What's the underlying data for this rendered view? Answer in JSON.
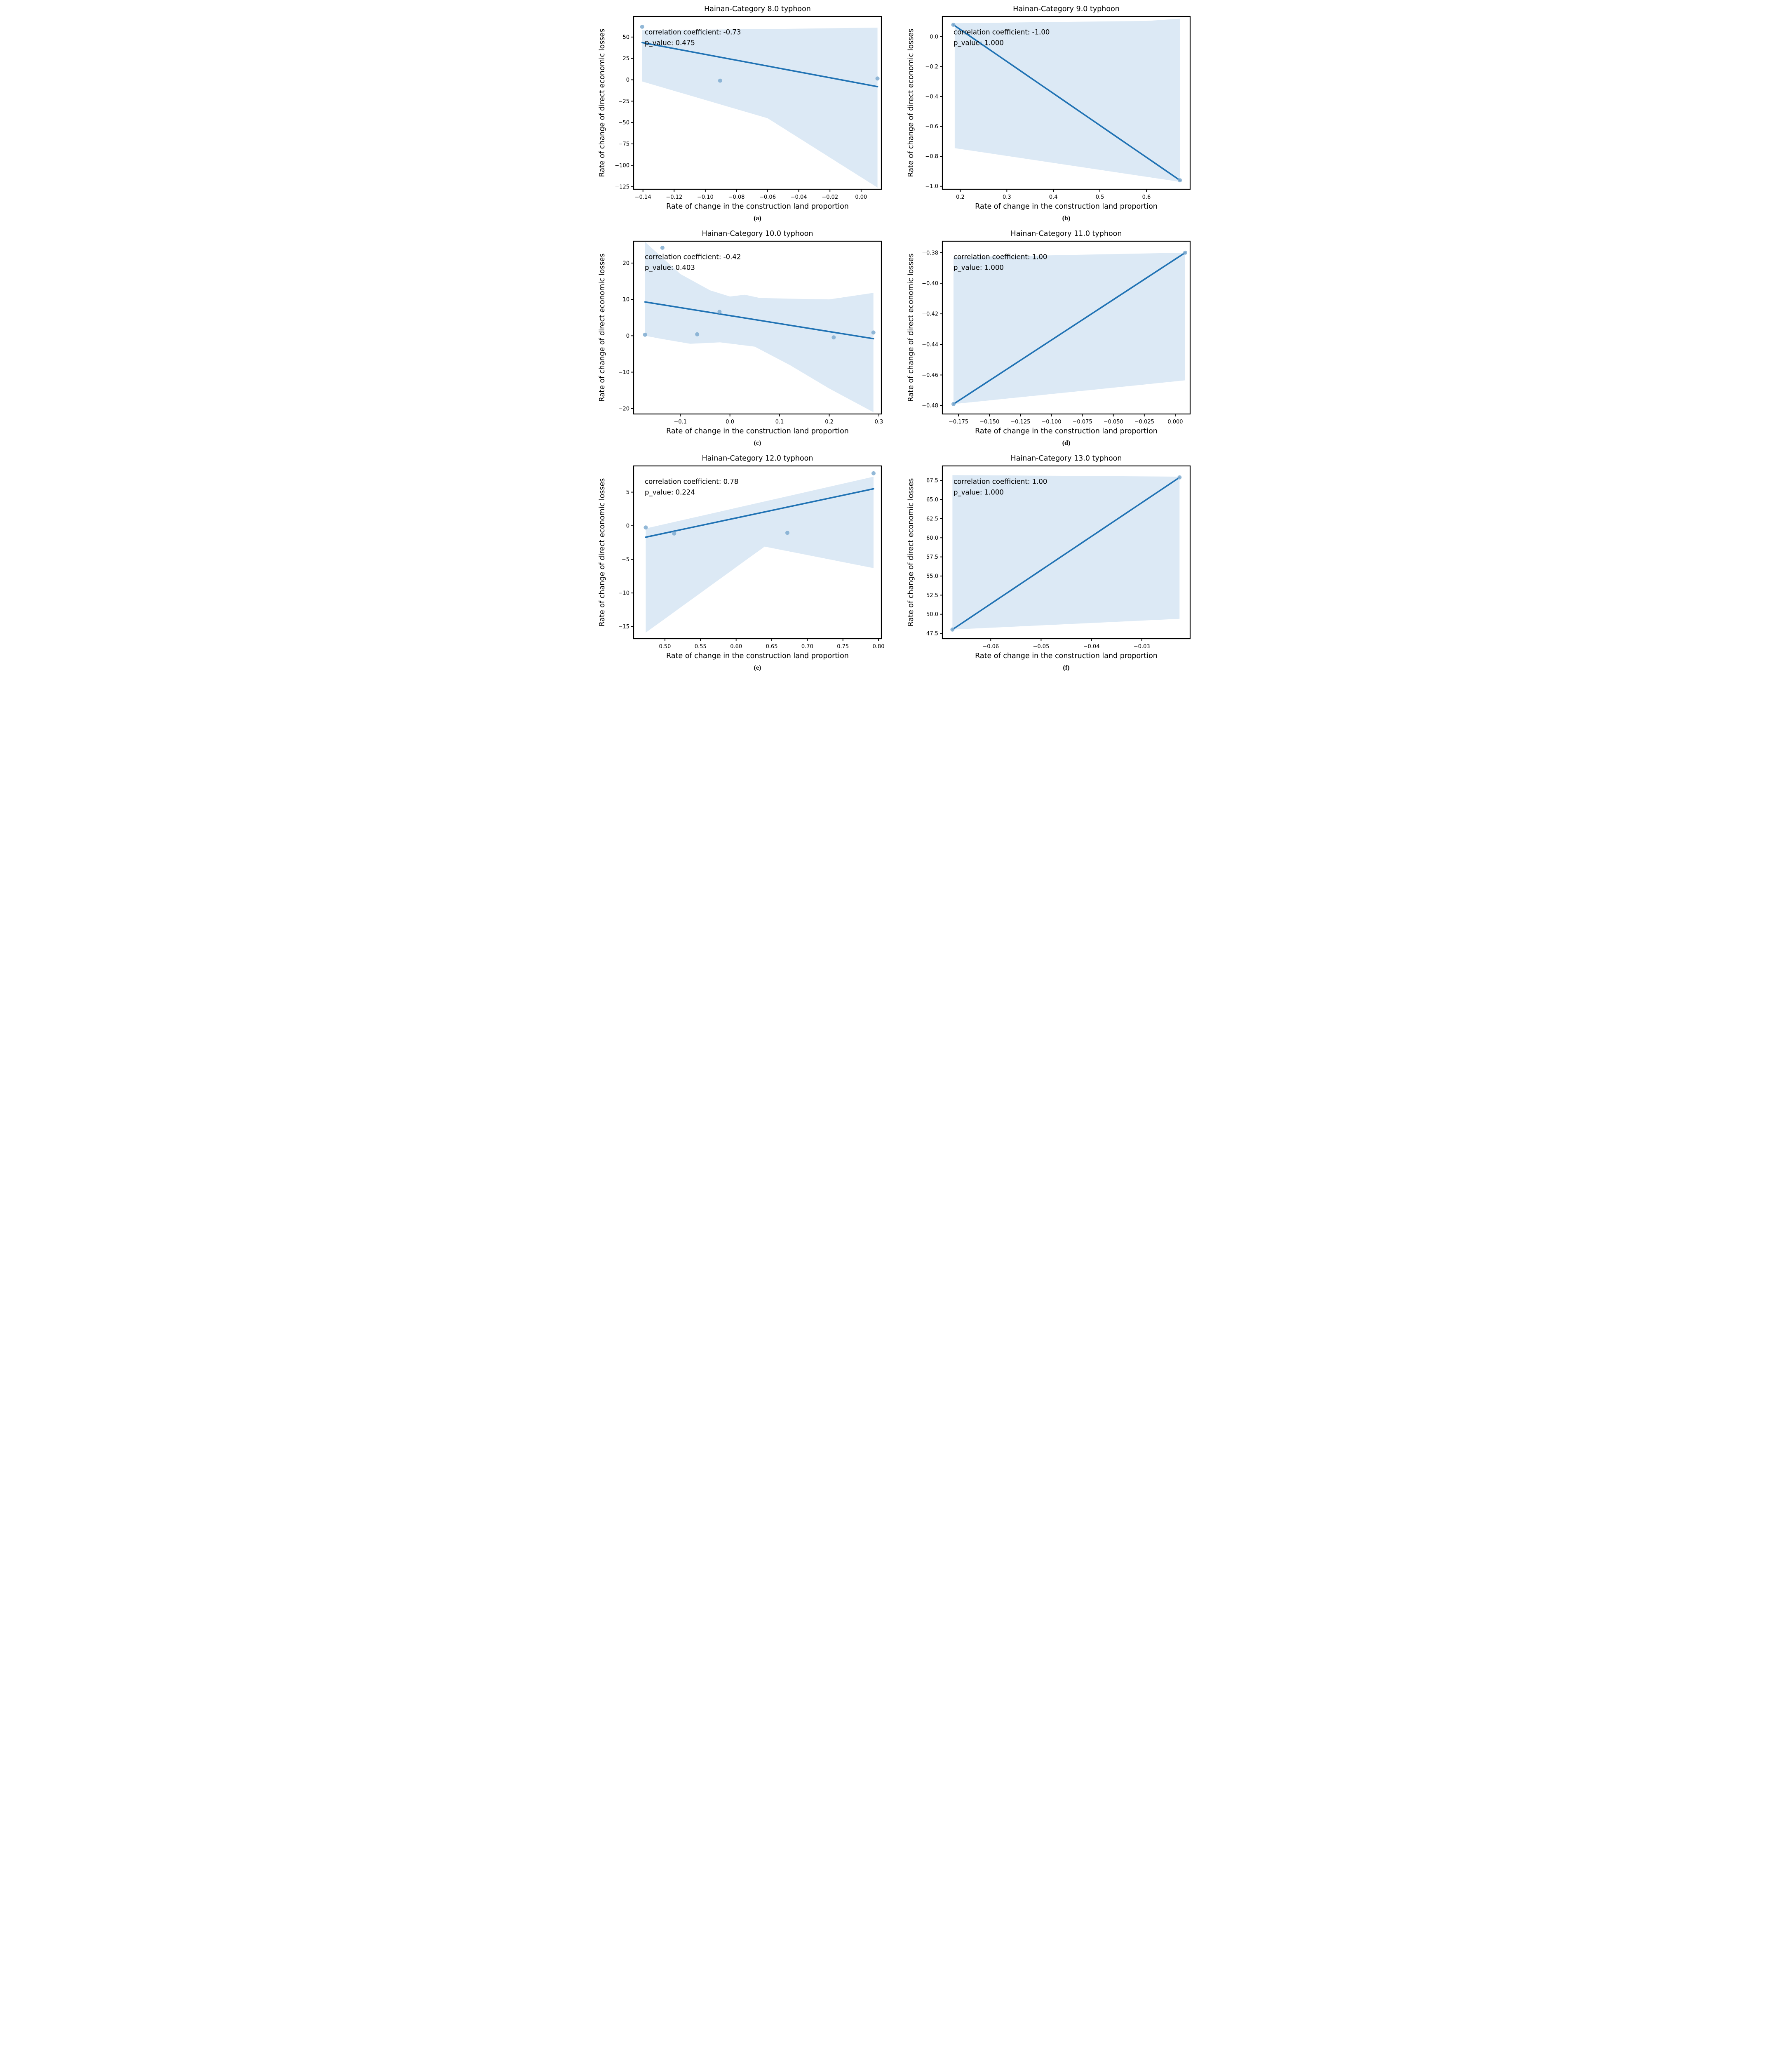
{
  "figure": {
    "x_axis_label": "Rate of change in the construction land proportion",
    "y_axis_label": "Rate of change of direct economic losses",
    "colors": {
      "regression_line": "#2173b4",
      "scatter_point": "#7fabd0",
      "confidence_band": "#dce9f5",
      "spine": "#000000",
      "text": "#000000"
    }
  },
  "chart_data": [
    {
      "type": "scatter",
      "caption": "(a)",
      "title": "Hainan-Category 8.0 typhoon",
      "annotation_line1": "correlation coefficient: -0.73",
      "annotation_line2": "p_value: 0.475",
      "xlabel": "Rate of change in the construction land proportion",
      "ylabel": "Rate of change of direct economic losses",
      "xlim": [
        -0.146,
        0.013
      ],
      "ylim": [
        -128,
        74
      ],
      "grid": false,
      "legend": false,
      "xticks": [
        [
          -0.14,
          "−0.14"
        ],
        [
          -0.12,
          "−0.12"
        ],
        [
          -0.1,
          "−0.10"
        ],
        [
          -0.08,
          "−0.08"
        ],
        [
          -0.06,
          "−0.06"
        ],
        [
          -0.04,
          "−0.04"
        ],
        [
          -0.02,
          "−0.02"
        ],
        [
          0.0,
          "0.00"
        ]
      ],
      "yticks": [
        [
          50,
          "50"
        ],
        [
          25,
          "25"
        ],
        [
          0,
          "0"
        ],
        [
          -25,
          "−25"
        ],
        [
          -50,
          "−50"
        ],
        [
          -75,
          "−75"
        ],
        [
          -100,
          "−100"
        ],
        [
          -125,
          "−125"
        ]
      ],
      "points": [
        [
          -0.1405,
          62
        ],
        [
          -0.0905,
          -1.0
        ],
        [
          0.0105,
          1.5
        ]
      ],
      "regression": [
        [
          -0.1405,
          43.5
        ],
        [
          0.0105,
          -8
        ]
      ],
      "ci_band": [
        [
          -0.1405,
          58
        ],
        [
          -0.05,
          59.5
        ],
        [
          0.0105,
          61
        ],
        [
          0.0105,
          -126
        ],
        [
          -0.06,
          -45
        ],
        [
          -0.1405,
          -2
        ]
      ]
    },
    {
      "type": "scatter",
      "caption": "(b)",
      "title": "Hainan-Category 9.0 typhoon",
      "annotation_line1": "correlation coefficient: -1.00",
      "annotation_line2": "p_value: 1.000",
      "xlabel": "Rate of change in the construction land proportion",
      "ylabel": "Rate of change of direct economic losses",
      "xlim": [
        0.1615,
        0.694
      ],
      "ylim": [
        -1.02,
        0.135
      ],
      "grid": false,
      "legend": false,
      "xticks": [
        [
          0.2,
          "0.2"
        ],
        [
          0.3,
          "0.3"
        ],
        [
          0.4,
          "0.4"
        ],
        [
          0.5,
          "0.5"
        ],
        [
          0.6,
          "0.6"
        ]
      ],
      "yticks": [
        [
          0,
          "0.0"
        ],
        [
          -0.2,
          "−0.2"
        ],
        [
          -0.4,
          "−0.4"
        ],
        [
          -0.6,
          "−0.6"
        ],
        [
          -0.8,
          "−0.8"
        ],
        [
          -1.0,
          "−1.0"
        ]
      ],
      "points": [
        [
          0.185,
          0.08
        ],
        [
          0.672,
          -0.96
        ]
      ],
      "regression": [
        [
          0.185,
          0.08
        ],
        [
          0.672,
          -0.96
        ]
      ],
      "ci_band": [
        [
          0.188,
          0.09
        ],
        [
          0.45,
          0.1
        ],
        [
          0.6,
          0.105
        ],
        [
          0.672,
          0.12
        ],
        [
          0.672,
          -0.97
        ],
        [
          0.188,
          -0.745
        ]
      ]
    },
    {
      "type": "scatter",
      "caption": "(c)",
      "title": "Hainan-Category 10.0 typhoon",
      "annotation_line1": "correlation coefficient: -0.42",
      "annotation_line2": "p_value: 0.403",
      "xlabel": "Rate of change in the construction land proportion",
      "ylabel": "Rate of change of direct economic losses",
      "xlim": [
        -0.194,
        0.305
      ],
      "ylim": [
        -21.5,
        26
      ],
      "grid": false,
      "legend": false,
      "xticks": [
        [
          -0.1,
          "−0.1"
        ],
        [
          0,
          "0.0"
        ],
        [
          0.1,
          "0.1"
        ],
        [
          0.2,
          "0.2"
        ],
        [
          0.3,
          "0.3"
        ]
      ],
      "yticks": [
        [
          20,
          "20"
        ],
        [
          10,
          "10"
        ],
        [
          0,
          "0"
        ],
        [
          -10,
          "−10"
        ],
        [
          -20,
          "−20"
        ]
      ],
      "points": [
        [
          -0.171,
          0.3
        ],
        [
          -0.136,
          24.2
        ],
        [
          -0.066,
          0.4
        ],
        [
          -0.021,
          6.6
        ],
        [
          0.209,
          -0.45
        ],
        [
          0.289,
          0.9
        ]
      ],
      "regression": [
        [
          -0.171,
          9.3
        ],
        [
          0.289,
          -0.8
        ]
      ],
      "ci_band": [
        [
          -0.171,
          25.8
        ],
        [
          -0.1,
          17
        ],
        [
          -0.04,
          12.5
        ],
        [
          0.0,
          10.8
        ],
        [
          0.03,
          11.3
        ],
        [
          0.06,
          10.4
        ],
        [
          0.12,
          10.2
        ],
        [
          0.2,
          10.0
        ],
        [
          0.289,
          11.8
        ],
        [
          0.289,
          -21
        ],
        [
          0.2,
          -14.5
        ],
        [
          0.12,
          -8.0
        ],
        [
          0.05,
          -3.0
        ],
        [
          -0.02,
          -1.8
        ],
        [
          -0.08,
          -2.2
        ],
        [
          -0.14,
          -0.8
        ],
        [
          -0.171,
          0.0
        ]
      ]
    },
    {
      "type": "scatter",
      "caption": "(d)",
      "title": "Hainan-Category 11.0 typhoon",
      "annotation_line1": "correlation coefficient: 1.00",
      "annotation_line2": "p_value: 1.000",
      "xlabel": "Rate of change in the construction land proportion",
      "ylabel": "Rate of change of direct economic losses",
      "xlim": [
        -0.188,
        0.012
      ],
      "ylim": [
        -0.4855,
        -0.3725
      ],
      "grid": false,
      "legend": false,
      "xticks": [
        [
          -0.175,
          "−0.175"
        ],
        [
          -0.15,
          "−0.150"
        ],
        [
          -0.125,
          "−0.125"
        ],
        [
          -0.1,
          "−0.100"
        ],
        [
          -0.075,
          "−0.075"
        ],
        [
          -0.05,
          "−0.050"
        ],
        [
          -0.025,
          "−0.025"
        ],
        [
          0,
          "0.000"
        ]
      ],
      "yticks": [
        [
          -0.38,
          "−0.38"
        ],
        [
          -0.4,
          "−0.40"
        ],
        [
          -0.42,
          "−0.42"
        ],
        [
          -0.44,
          "−0.44"
        ],
        [
          -0.46,
          "−0.46"
        ],
        [
          -0.48,
          "−0.48"
        ]
      ],
      "points": [
        [
          -0.179,
          -0.479
        ],
        [
          0.008,
          -0.38
        ]
      ],
      "regression": [
        [
          -0.179,
          -0.479
        ],
        [
          0.008,
          -0.38
        ]
      ],
      "ci_band": [
        [
          -0.179,
          -0.383
        ],
        [
          0.008,
          -0.38
        ],
        [
          0.008,
          -0.4635
        ],
        [
          -0.179,
          -0.479
        ]
      ]
    },
    {
      "type": "scatter",
      "caption": "(e)",
      "title": "Hainan-Category 12.0 typhoon",
      "annotation_line1": "correlation coefficient: 0.78",
      "annotation_line2": "p_value: 0.224",
      "xlabel": "Rate of change in the construction land proportion",
      "ylabel": "Rate of change of direct economic losses",
      "xlim": [
        0.456,
        0.804
      ],
      "ylim": [
        -16.8,
        8.9
      ],
      "grid": false,
      "legend": false,
      "xticks": [
        [
          0.5,
          "0.50"
        ],
        [
          0.55,
          "0.55"
        ],
        [
          0.6,
          "0.60"
        ],
        [
          0.65,
          "0.65"
        ],
        [
          0.7,
          "0.70"
        ],
        [
          0.75,
          "0.75"
        ],
        [
          0.8,
          "0.80"
        ]
      ],
      "yticks": [
        [
          5,
          "5"
        ],
        [
          0,
          "0"
        ],
        [
          -5,
          "−5"
        ],
        [
          -10,
          "−10"
        ],
        [
          -15,
          "−15"
        ]
      ],
      "points": [
        [
          0.473,
          -0.25
        ],
        [
          0.513,
          -1.15
        ],
        [
          0.672,
          -1.05
        ],
        [
          0.793,
          7.8
        ]
      ],
      "regression": [
        [
          0.473,
          -1.7
        ],
        [
          0.793,
          5.5
        ]
      ],
      "ci_band": [
        [
          0.473,
          -0.4
        ],
        [
          0.793,
          7.3
        ],
        [
          0.793,
          -6.3
        ],
        [
          0.64,
          -3.1
        ],
        [
          0.473,
          -15.9
        ]
      ]
    },
    {
      "type": "scatter",
      "caption": "(f)",
      "title": "Hainan-Category 13.0 typhoon",
      "annotation_line1": "correlation coefficient: 1.00",
      "annotation_line2": "p_value: 1.000",
      "xlabel": "Rate of change in the construction land proportion",
      "ylabel": "Rate of change of direct economic losses",
      "xlim": [
        -0.0696,
        -0.0204
      ],
      "ylim": [
        46.8,
        69.4
      ],
      "grid": false,
      "legend": false,
      "xticks": [
        [
          -0.06,
          "−0.06"
        ],
        [
          -0.05,
          "−0.05"
        ],
        [
          -0.04,
          "−0.04"
        ],
        [
          -0.03,
          "−0.03"
        ]
      ],
      "yticks": [
        [
          67.5,
          "67.5"
        ],
        [
          65.0,
          "65.0"
        ],
        [
          62.5,
          "62.5"
        ],
        [
          60.0,
          "60.0"
        ],
        [
          57.5,
          "57.5"
        ],
        [
          55.0,
          "55.0"
        ],
        [
          52.5,
          "52.5"
        ],
        [
          50.0,
          "50.0"
        ],
        [
          47.5,
          "47.5"
        ]
      ],
      "points": [
        [
          -0.0676,
          48.0
        ],
        [
          -0.0225,
          67.9
        ]
      ],
      "regression": [
        [
          -0.0676,
          48.0
        ],
        [
          -0.0225,
          67.9
        ]
      ],
      "ci_band": [
        [
          -0.0676,
          68.2
        ],
        [
          -0.0225,
          68.0
        ],
        [
          -0.0225,
          49.4
        ],
        [
          -0.0676,
          48.0
        ]
      ]
    }
  ]
}
